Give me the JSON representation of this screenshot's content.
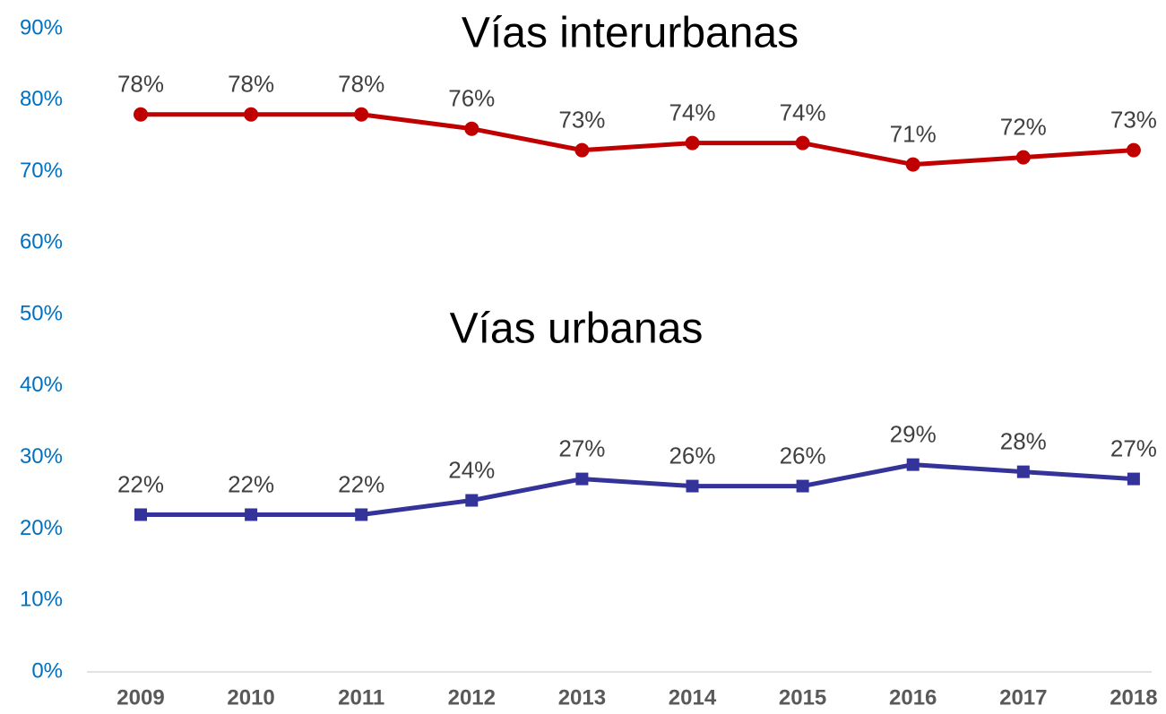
{
  "chart_data": {
    "type": "line",
    "categories": [
      "2009",
      "2010",
      "2011",
      "2012",
      "2013",
      "2014",
      "2015",
      "2016",
      "2017",
      "2018"
    ],
    "series": [
      {
        "name": "Vías interurbanas",
        "color": "#c00000",
        "marker": "circle",
        "values": [
          78,
          78,
          78,
          76,
          73,
          74,
          74,
          71,
          72,
          73
        ],
        "value_labels": [
          "78%",
          "78%",
          "78%",
          "76%",
          "73%",
          "74%",
          "74%",
          "71%",
          "72%",
          "73%"
        ]
      },
      {
        "name": "Vías urbanas",
        "color": "#333399",
        "marker": "square",
        "values": [
          22,
          22,
          22,
          24,
          27,
          26,
          26,
          29,
          28,
          27
        ],
        "value_labels": [
          "22%",
          "22%",
          "22%",
          "24%",
          "27%",
          "26%",
          "26%",
          "29%",
          "28%",
          "27%"
        ]
      }
    ],
    "ylim": [
      0,
      90
    ],
    "yticks": [
      {
        "value": 0,
        "label": "0%"
      },
      {
        "value": 10,
        "label": "10%"
      },
      {
        "value": 20,
        "label": "20%"
      },
      {
        "value": 30,
        "label": "30%"
      },
      {
        "value": 40,
        "label": "40%"
      },
      {
        "value": 50,
        "label": "50%"
      },
      {
        "value": 60,
        "label": "60%"
      },
      {
        "value": 70,
        "label": "70%"
      },
      {
        "value": 80,
        "label": "80%"
      },
      {
        "value": 90,
        "label": "90%"
      }
    ],
    "grid": false
  }
}
